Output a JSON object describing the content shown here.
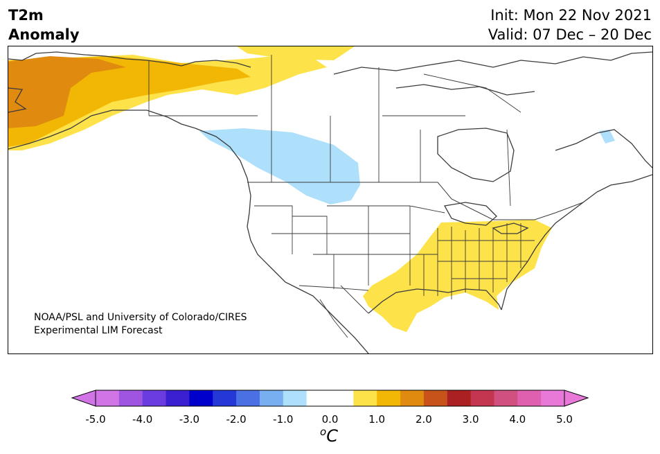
{
  "header": {
    "title_line1": "T2m",
    "title_line2": "Anomaly",
    "init": "Init: Mon 22 Nov 2021",
    "valid": "Valid: 07 Dec – 20 Dec"
  },
  "credit": {
    "line1": "NOAA/PSL and University of Colorado/CIRES",
    "line2": "Experimental LIM Forecast"
  },
  "colorbar": {
    "ticks": [
      "-5.0",
      "-4.0",
      "-3.0",
      "-2.0",
      "-1.0",
      "0.0",
      "1.0",
      "2.0",
      "3.0",
      "4.0",
      "5.0"
    ],
    "units_base": "C",
    "units_sup": "o",
    "colors": [
      "#d175e6",
      "#a055e0",
      "#6b3ce0",
      "#3a20d0",
      "#0000cc",
      "#2438d8",
      "#4a70e4",
      "#78aff0",
      "#aee0fb",
      "#ffffff",
      "#ffffff",
      "#fee24a",
      "#f2b705",
      "#e08a10",
      "#c7531a",
      "#ab2020",
      "#c43550",
      "#d05080",
      "#e060b0",
      "#e879d8"
    ],
    "under_color": "#d175e6",
    "over_color": "#e879d8"
  },
  "anomaly_colors": {
    "warm_1": "#fee24a",
    "warm_2": "#f2b705",
    "warm_3": "#e08a10",
    "cool_1": "#aee0fb"
  }
}
